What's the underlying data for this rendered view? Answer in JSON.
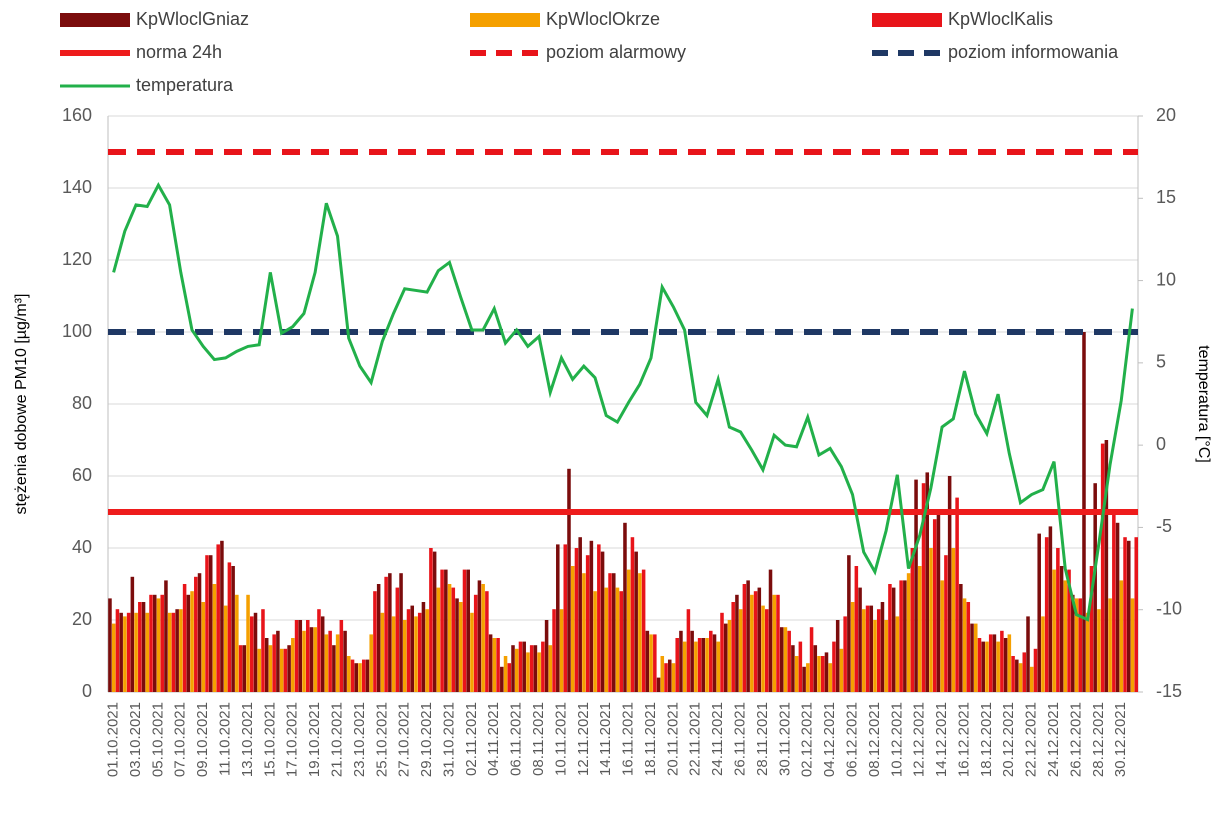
{
  "chart_data": {
    "type": "bar",
    "ylabel": "stężenia dobowe PM10 [µg/m³]",
    "y2label": "temperatura [°C]",
    "ylim": [
      0,
      160
    ],
    "yticks": [
      0,
      20,
      40,
      60,
      80,
      100,
      120,
      140,
      160
    ],
    "y2lim": [
      -15,
      20
    ],
    "y2ticks": [
      -15,
      -10,
      -5,
      0,
      5,
      10,
      15,
      20
    ],
    "grid": true,
    "legend": "top",
    "categories": [
      "01.10.2021",
      null,
      "03.10.2021",
      null,
      "05.10.2021",
      null,
      "07.10.2021",
      null,
      "09.10.2021",
      null,
      "11.10.2021",
      null,
      "13.10.2021",
      null,
      "15.10.2021",
      null,
      "17.10.2021",
      null,
      "19.10.2021",
      null,
      "21.10.2021",
      null,
      "23.10.2021",
      null,
      "25.10.2021",
      null,
      "27.10.2021",
      null,
      "29.10.2021",
      null,
      "31.10.2021",
      null,
      "02.11.2021",
      null,
      "04.11.2021",
      null,
      "06.11.2021",
      null,
      "08.11.2021",
      null,
      "10.11.2021",
      null,
      "12.11.2021",
      null,
      "14.11.2021",
      null,
      "16.11.2021",
      null,
      "18.11.2021",
      null,
      "20.11.2021",
      null,
      "22.11.2021",
      null,
      "24.11.2021",
      null,
      "26.11.2021",
      null,
      "28.11.2021",
      null,
      "30.11.2021",
      null,
      "02.12.2021",
      null,
      "04.12.2021",
      null,
      "06.12.2021",
      null,
      "08.12.2021",
      null,
      "10.12.2021",
      null,
      "12.12.2021",
      null,
      "14.12.2021",
      null,
      "16.12.2021",
      null,
      "18.12.2021",
      null,
      "20.12.2021",
      null,
      "22.12.2021",
      null,
      "24.12.2021",
      null,
      "26.12.2021",
      null,
      "28.12.2021",
      null,
      "30.12.2021",
      null
    ],
    "series": [
      {
        "name": "KpWloclGniaz",
        "type": "bar",
        "color": "#7b0c0c",
        "values": [
          26,
          22,
          32,
          25,
          27,
          31,
          23,
          27,
          33,
          38,
          42,
          35,
          13,
          22,
          15,
          17,
          13,
          20,
          18,
          21,
          13,
          17,
          8,
          9,
          30,
          33,
          33,
          24,
          25,
          39,
          34,
          26,
          34,
          31,
          16,
          7,
          13,
          14,
          13,
          20,
          41,
          62,
          43,
          42,
          39,
          33,
          47,
          39,
          17,
          4,
          9,
          17,
          17,
          15,
          16,
          19,
          27,
          31,
          29,
          34,
          18,
          13,
          7,
          13,
          11,
          20,
          38,
          29,
          24,
          25,
          29,
          31,
          59,
          61,
          50,
          60,
          30,
          19,
          14,
          16,
          15,
          9,
          21,
          44,
          46,
          35,
          27,
          100,
          58,
          70,
          47,
          42
        ]
      },
      {
        "name": "KpWloclOkrze",
        "type": "bar",
        "color": "#f5a000",
        "values": [
          19,
          21,
          22,
          22,
          26,
          22,
          23,
          28,
          25,
          30,
          24,
          27,
          27,
          12,
          13,
          12,
          15,
          17,
          18,
          16,
          16,
          10,
          8,
          16,
          22,
          21,
          20,
          21,
          23,
          29,
          30,
          25,
          22,
          30,
          15,
          10,
          12,
          11,
          11,
          13,
          23,
          35,
          33,
          28,
          29,
          29,
          34,
          33,
          16,
          10,
          8,
          14,
          14,
          15,
          14,
          20,
          23,
          27,
          24,
          27,
          18,
          10,
          8,
          10,
          8,
          12,
          25,
          23,
          20,
          20,
          21,
          33,
          35,
          40,
          31,
          40,
          26,
          19,
          14,
          14,
          16,
          8,
          7,
          21,
          34,
          31,
          26,
          22,
          23,
          26,
          31,
          26
        ]
      },
      {
        "name": "KpWloclKalis",
        "type": "bar",
        "color": "#e8141a",
        "values": [
          23,
          22,
          25,
          27,
          27,
          22,
          30,
          32,
          38,
          41,
          36,
          13,
          21,
          23,
          16,
          12,
          20,
          20,
          23,
          17,
          20,
          9,
          9,
          28,
          32,
          29,
          23,
          22,
          40,
          34,
          29,
          34,
          27,
          28,
          15,
          8,
          14,
          13,
          14,
          23,
          41,
          40,
          38,
          41,
          33,
          28,
          43,
          34,
          16,
          8,
          15,
          23,
          15,
          17,
          22,
          25,
          30,
          28,
          23,
          27,
          17,
          14,
          18,
          10,
          14,
          21,
          35,
          24,
          23,
          30,
          31,
          40,
          58,
          48,
          38,
          54,
          25,
          15,
          16,
          17,
          10,
          11,
          12,
          43,
          40,
          34,
          26,
          35,
          69,
          50,
          43,
          43
        ]
      },
      {
        "name": "temperatura",
        "type": "line",
        "axis": "y2",
        "color": "#22b04a",
        "values": [
          10.5,
          13,
          14.6,
          14.5,
          15.8,
          14.6,
          10.5,
          7,
          6,
          5.2,
          5.3,
          5.7,
          6,
          6.1,
          10.5,
          6.8,
          7.2,
          8,
          10.5,
          14.7,
          12.7,
          6.5,
          4.8,
          3.8,
          6.3,
          8,
          9.5,
          9.4,
          9.3,
          10.6,
          11.1,
          9,
          7,
          7,
          8.3,
          6.2,
          7,
          6,
          6.6,
          3.2,
          5.3,
          4,
          4.8,
          4.1,
          1.8,
          1.4,
          2.6,
          3.7,
          5.3,
          9.6,
          8.4,
          7,
          2.6,
          1.8,
          4,
          1.1,
          0.8,
          -0.3,
          -1.5,
          0.6,
          0,
          -0.1,
          1.7,
          -0.6,
          -0.2,
          -1.3,
          -3,
          -6.5,
          -7.7,
          -5.2,
          -1.8,
          -7.5,
          -5.5,
          -2.6,
          1.1,
          1.6,
          4.5,
          1.9,
          0.7,
          3.1,
          -0.5,
          -3.5,
          -3,
          -2.7,
          -1,
          -7.5,
          -10.3,
          -10.6,
          -6,
          -1.2,
          2.7,
          8.3
        ]
      }
    ],
    "reference_lines": [
      {
        "name": "norma 24h",
        "value": 50,
        "color": "#ee1c1c",
        "dashed": false
      },
      {
        "name": "poziom alarmowy",
        "value": 150,
        "color": "#e8141a",
        "dashed": true
      },
      {
        "name": "poziom informowania",
        "value": 100,
        "color": "#1f3864",
        "dashed": true
      }
    ]
  }
}
